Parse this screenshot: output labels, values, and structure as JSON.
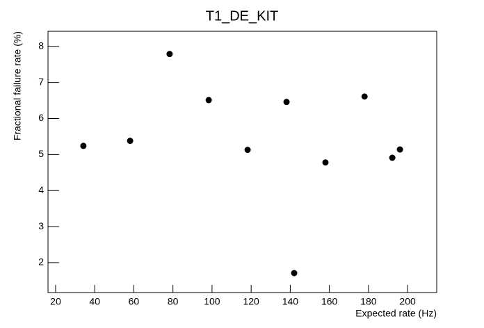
{
  "chart_data": {
    "type": "scatter",
    "title": "T1_DE_KIT",
    "x_label": "Expected rate (Hz)",
    "y_label": "Fractional failure rate (%)",
    "x": [
      34.2,
      58.1,
      78.3,
      98.3,
      118.2,
      138.1,
      142.0,
      158.0,
      178.0,
      192.2,
      196.1
    ],
    "values": [
      5.24,
      5.38,
      7.79,
      6.51,
      5.13,
      6.46,
      1.71,
      4.78,
      6.61,
      4.91,
      5.14
    ],
    "color": "#000000",
    "xlim": [
      16.1,
      214.9
    ],
    "ylim": [
      1.17,
      8.42
    ],
    "xticks": [
      20,
      40,
      60,
      80,
      100,
      120,
      140,
      160,
      180,
      200
    ],
    "yticks": [
      2,
      3,
      4,
      5,
      6,
      7,
      8
    ]
  }
}
